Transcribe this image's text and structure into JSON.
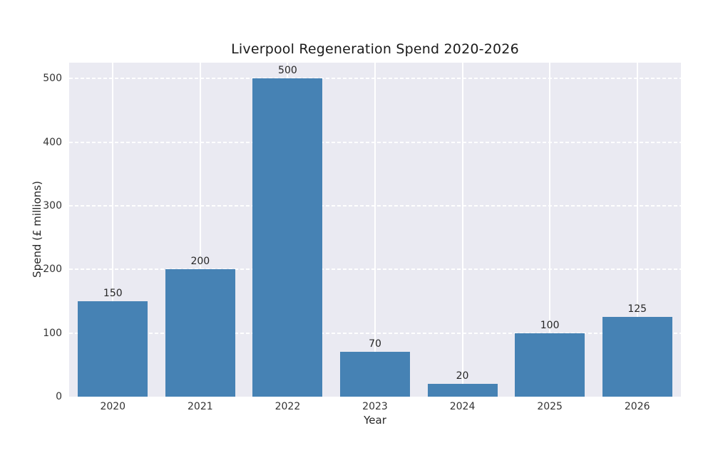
{
  "chart_data": {
    "type": "bar",
    "title": "Liverpool Regeneration Spend 2020-2026",
    "xlabel": "Year",
    "ylabel": "Spend (£ millions)",
    "categories": [
      "2020",
      "2021",
      "2022",
      "2023",
      "2024",
      "2025",
      "2026"
    ],
    "values": [
      150,
      200,
      500,
      70,
      20,
      100,
      125
    ],
    "value_labels": [
      "150",
      "200",
      "500",
      "70",
      "20",
      "100",
      "125"
    ],
    "yticks": [
      0,
      100,
      200,
      300,
      400,
      500
    ],
    "ylim": [
      0,
      525
    ],
    "bar_width_fraction": 0.8,
    "legend": "none",
    "grid": {
      "horizontal": "dashed",
      "vertical": "solid"
    },
    "colors": {
      "bar": "#4682B4",
      "plot_background": "#EAEAF2",
      "figure_background": "#FFFFFF",
      "gridline": "#FFFFFF",
      "title_text": "#1A1A1A",
      "tick_text": "#333333",
      "label_text": "#262626"
    }
  }
}
